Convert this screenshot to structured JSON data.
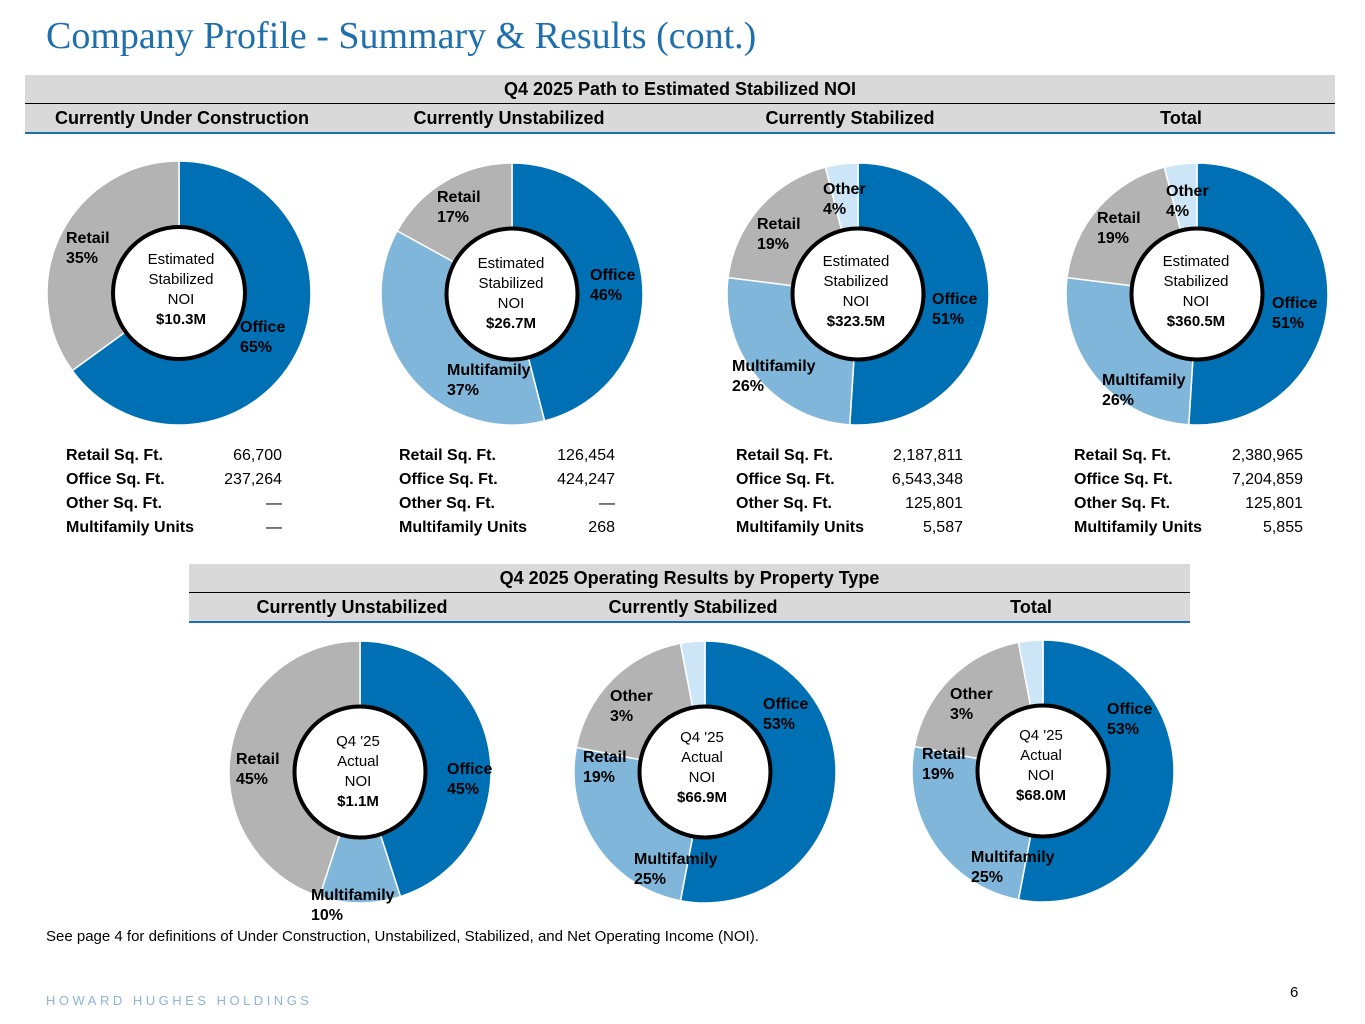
{
  "page": {
    "title": "Company Profile - Summary & Results (cont.)",
    "footnote": "See page 4 for definitions of Under Construction, Unstabilized, Stabilized, and Net Operating Income (NOI).",
    "brand": "HOWARD HUGHES HOLDINGS",
    "page_number": "6"
  },
  "colors": {
    "office": "#0070b4",
    "multifamily": "#7fb6d9",
    "retail": "#b3b3b3",
    "other": "#cde6f7",
    "title": "#1f6fad",
    "band": "#d9d9d9"
  },
  "section1": {
    "header": "Q4 2025 Path to Estimated Stabilized NOI",
    "columns": [
      "Currently Under Construction",
      "Currently Unstabilized",
      "Currently Stabilized",
      "Total"
    ]
  },
  "section2": {
    "header": "Q4 2025 Operating Results by Property Type",
    "columns": [
      "Currently Unstabilized",
      "Currently Stabilized",
      "Total"
    ]
  },
  "chart_data": [
    {
      "type": "pie",
      "title": "Currently Under Construction",
      "center": [
        "Estimated",
        "Stabilized",
        "NOI"
      ],
      "center_value": "$10.3M",
      "slices": [
        {
          "name": "Office",
          "value": 65,
          "label": "65%"
        },
        {
          "name": "Retail",
          "value": 35,
          "label": "35%"
        }
      ]
    },
    {
      "type": "pie",
      "title": "Currently Unstabilized",
      "center": [
        "Estimated",
        "Stabilized",
        "NOI"
      ],
      "center_value": "$26.7M",
      "slices": [
        {
          "name": "Office",
          "value": 46,
          "label": "46%"
        },
        {
          "name": "Multifamily",
          "value": 37,
          "label": "37%"
        },
        {
          "name": "Retail",
          "value": 17,
          "label": "17%"
        }
      ]
    },
    {
      "type": "pie",
      "title": "Currently Stabilized",
      "center": [
        "Estimated",
        "Stabilized",
        "NOI"
      ],
      "center_value": "$323.5M",
      "slices": [
        {
          "name": "Office",
          "value": 51,
          "label": "51%"
        },
        {
          "name": "Multifamily",
          "value": 26,
          "label": "26%"
        },
        {
          "name": "Retail",
          "value": 19,
          "label": "19%"
        },
        {
          "name": "Other",
          "value": 4,
          "label": "4%"
        }
      ]
    },
    {
      "type": "pie",
      "title": "Total",
      "center": [
        "Estimated",
        "Stabilized",
        "NOI"
      ],
      "center_value": "$360.5M",
      "slices": [
        {
          "name": "Office",
          "value": 51,
          "label": "51%"
        },
        {
          "name": "Multifamily",
          "value": 26,
          "label": "26%"
        },
        {
          "name": "Retail",
          "value": 19,
          "label": "19%"
        },
        {
          "name": "Other",
          "value": 4,
          "label": "4%"
        }
      ]
    },
    {
      "type": "pie",
      "title": "Currently Unstabilized",
      "center": [
        "Q4 '25",
        "Actual",
        "NOI"
      ],
      "center_value": "$1.1M",
      "slices": [
        {
          "name": "Office",
          "value": 45,
          "label": "45%"
        },
        {
          "name": "Multifamily",
          "value": 10,
          "label": "10%"
        },
        {
          "name": "Retail",
          "value": 45,
          "label": "45%"
        }
      ]
    },
    {
      "type": "pie",
      "title": "Currently Stabilized",
      "center": [
        "Q4 '25",
        "Actual",
        "NOI"
      ],
      "center_value": "$66.9M",
      "slices": [
        {
          "name": "Office",
          "value": 53,
          "label": "53%"
        },
        {
          "name": "Multifamily",
          "value": 25,
          "label": "25%"
        },
        {
          "name": "Retail",
          "value": 19,
          "label": "19%"
        },
        {
          "name": "Other",
          "value": 3,
          "label": "3%"
        }
      ]
    },
    {
      "type": "pie",
      "title": "Total",
      "center": [
        "Q4 '25",
        "Actual",
        "NOI"
      ],
      "center_value": "$68.0M",
      "slices": [
        {
          "name": "Office",
          "value": 53,
          "label": "53%"
        },
        {
          "name": "Multifamily",
          "value": 25,
          "label": "25%"
        },
        {
          "name": "Retail",
          "value": 19,
          "label": "19%"
        },
        {
          "name": "Other",
          "value": 3,
          "label": "3%"
        }
      ]
    }
  ],
  "stats": [
    {
      "rows": [
        [
          "Retail Sq. Ft.",
          "66,700"
        ],
        [
          "Office Sq. Ft.",
          "237,264"
        ],
        [
          "Other Sq. Ft.",
          "—"
        ],
        [
          "Multifamily Units",
          "—"
        ]
      ]
    },
    {
      "rows": [
        [
          "Retail Sq. Ft.",
          "126,454"
        ],
        [
          "Office Sq. Ft.",
          "424,247"
        ],
        [
          "Other Sq. Ft.",
          "—"
        ],
        [
          "Multifamily Units",
          "268"
        ]
      ]
    },
    {
      "rows": [
        [
          "Retail Sq. Ft.",
          "2,187,811"
        ],
        [
          "Office Sq. Ft.",
          "6,543,348"
        ],
        [
          "Other Sq. Ft.",
          "125,801"
        ],
        [
          "Multifamily Units",
          "5,587"
        ]
      ]
    },
    {
      "rows": [
        [
          "Retail Sq. Ft.",
          "2,380,965"
        ],
        [
          "Office Sq. Ft.",
          "7,204,859"
        ],
        [
          "Other Sq. Ft.",
          "125,801"
        ],
        [
          "Multifamily Units",
          "5,855"
        ]
      ]
    }
  ]
}
